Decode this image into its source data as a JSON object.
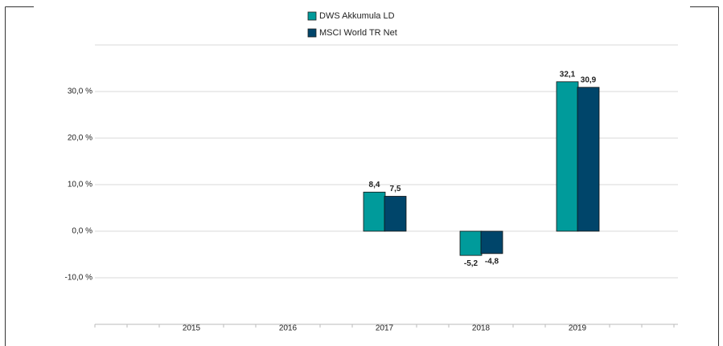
{
  "chart_data": {
    "type": "bar",
    "categories": [
      "2015",
      "2016",
      "2017",
      "2018",
      "2019"
    ],
    "series": [
      {
        "name": "DWS Akkumula  LD",
        "color": "#009b9b",
        "values": [
          null,
          null,
          8.4,
          -5.2,
          32.1
        ],
        "value_labels": [
          null,
          null,
          "8,4",
          "-5,2",
          "32,1"
        ]
      },
      {
        "name": "MSCI World TR Net",
        "color": "#00456a",
        "values": [
          null,
          null,
          7.5,
          -4.8,
          30.9
        ],
        "value_labels": [
          null,
          null,
          "7,5",
          "-4,8",
          "30,9"
        ]
      }
    ],
    "ylim": [
      -20,
      40
    ],
    "yticks": [
      {
        "value": -10,
        "label": "-10,0 %"
      },
      {
        "value": 0,
        "label": "0,0 %"
      },
      {
        "value": 10,
        "label": "10,0 %"
      },
      {
        "value": 20,
        "label": "20,0 %"
      },
      {
        "value": 30,
        "label": "30,0 %"
      }
    ],
    "grid": true
  }
}
